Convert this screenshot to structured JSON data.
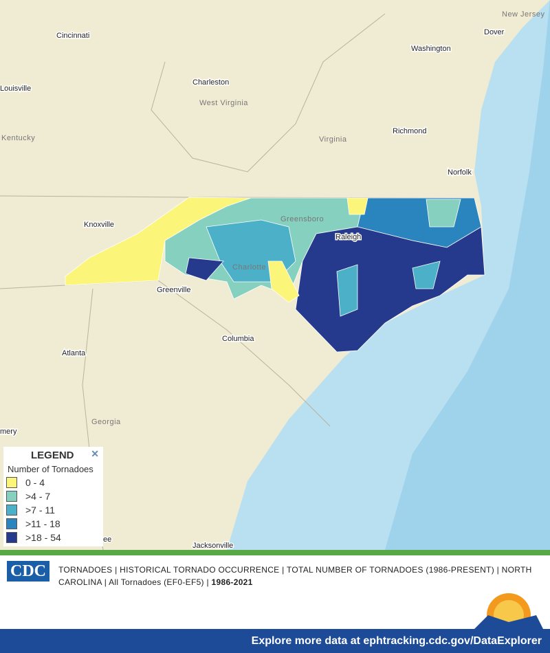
{
  "map": {
    "places": [
      "New Jersey",
      "Dover",
      "Cincinnati",
      "Washington",
      "Charleston",
      "West Virginia",
      "Louisville",
      "Kentucky",
      "Virginia",
      "Richmond",
      "Norfolk",
      "Knoxville",
      "Greensboro",
      "Raleigh",
      "Charlotte",
      "Greenville",
      "Columbia",
      "Atlanta",
      "Georgia",
      "mery",
      "ee",
      "Jacksonville"
    ]
  },
  "legend": {
    "title": "LEGEND",
    "close": "✕",
    "subtitle": "Number of Tornadoes",
    "items": [
      {
        "label": "0 - 4",
        "color": "#fbf57a"
      },
      {
        "label": ">4 - 7",
        "color": "#86d0bf"
      },
      {
        "label": ">7 - 11",
        "color": "#4db0c9"
      },
      {
        "label": ">11 - 18",
        "color": "#2a84be"
      },
      {
        "label": ">18 - 54",
        "color": "#253a8d"
      }
    ]
  },
  "footer": {
    "logo": "CDC",
    "description": "TORNADOES | HISTORICAL TORNADO OCCURRENCE | TOTAL NUMBER OF TORNADOES (1986-PRESENT) | NORTH CAROLINA | All Tornadoes (EF0-EF5) |",
    "years": "1986-2021",
    "link": "Explore more data at ephtracking.cdc.gov/DataExplorer"
  }
}
